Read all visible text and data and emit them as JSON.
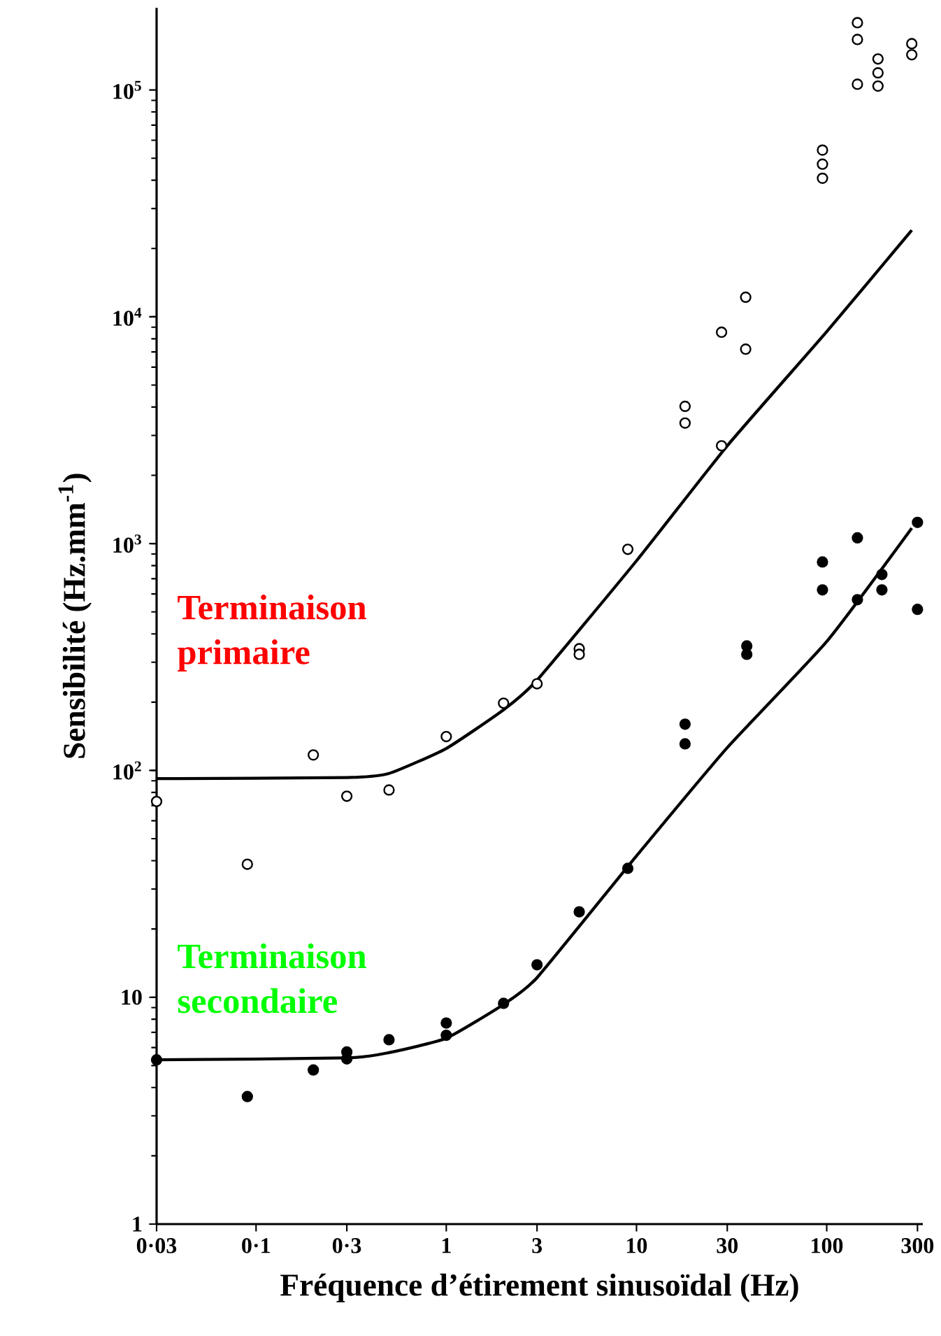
{
  "chart_data": {
    "type": "scatter",
    "xlabel": "Fréquence d’étirement sinusoïdal (Hz)",
    "ylabel": "Sensibilité (Hz.mm$^{-1}$)",
    "log": "xy",
    "grid": false,
    "marker": "circle",
    "xlim": [
      0.03,
      320
    ],
    "ylim": [
      1,
      230000
    ],
    "xticks": [
      {
        "value": 0.03,
        "label": "0·03"
      },
      {
        "value": 0.1,
        "label": "0·1"
      },
      {
        "value": 0.3,
        "label": "0·3"
      },
      1,
      3,
      10,
      30,
      100,
      300
    ],
    "yticks": [
      1,
      10,
      {
        "value": 100,
        "label": "10$^{2}$"
      },
      {
        "value": 1000,
        "label": "10$^{3}$"
      },
      {
        "value": 10000,
        "label": "10$^{4}$"
      },
      {
        "value": 100000,
        "label": "10$^{5}$"
      }
    ],
    "annotations": [
      "Terminaison primaire",
      "Terminaison secondaire"
    ],
    "series": [
      {
        "type": "scatter",
        "color": "#000000",
        "x": [
          0.03,
          0.09,
          0.2,
          0.3,
          0.5,
          1,
          2,
          3,
          5,
          5,
          9,
          18,
          18,
          28,
          28,
          37.5,
          37.5,
          95,
          95,
          95,
          145,
          145,
          145,
          186,
          186,
          186,
          280,
          280
        ],
        "values": [
          73,
          38.6,
          117,
          77,
          82,
          141,
          198,
          241,
          344,
          325,
          944,
          3400,
          4030,
          2700,
          8550,
          12200,
          7200,
          40800,
          47100,
          54300,
          106000,
          167000,
          198000,
          137000,
          119000,
          104000,
          143000,
          160000
        ]
      },
      {
        "type": "scatter",
        "color": "#000000",
        "x": [
          0.03,
          0.09,
          0.2,
          0.3,
          0.3,
          0.5,
          1,
          1,
          2,
          3,
          5,
          9,
          18,
          18,
          38,
          38,
          95,
          95,
          145,
          145,
          195,
          195,
          300,
          300
        ],
        "values": [
          5.3,
          3.65,
          4.78,
          5.74,
          5.35,
          6.5,
          7.7,
          6.8,
          9.4,
          13.9,
          23.8,
          37,
          160,
          131,
          354,
          325,
          830,
          625,
          1060,
          566,
          731,
          625,
          1240,
          513
        ]
      },
      {
        "type": "line",
        "color": "#000000",
        "marker": "none",
        "x": [
          0.03,
          0.3,
          0.5,
          1,
          2,
          3,
          10,
          30,
          100,
          280
        ],
        "values": [
          92,
          93,
          97,
          125,
          185,
          250,
          840,
          2700,
          8600,
          24100
        ]
      },
      {
        "type": "line",
        "color": "#000000",
        "marker": "none",
        "x": [
          0.03,
          0.3,
          0.5,
          1,
          2,
          3,
          10,
          30,
          100,
          280
        ],
        "values": [
          5.3,
          5.4,
          5.7,
          6.6,
          9.3,
          12.2,
          42,
          126,
          370,
          1170
        ]
      }
    ]
  }
}
